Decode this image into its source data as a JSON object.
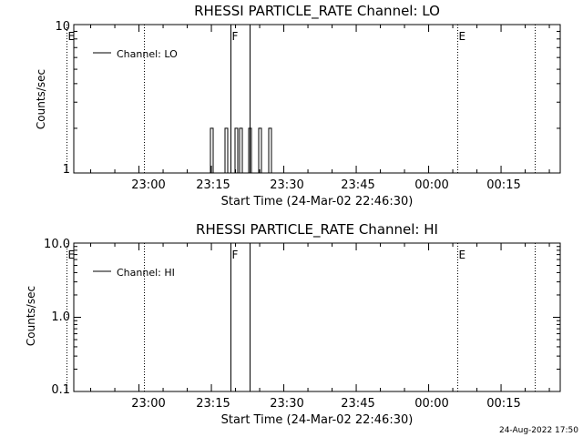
{
  "chart_data": [
    {
      "type": "line",
      "title": "RHESSI PARTICLE_RATE Channel: LO",
      "xlabel": "Start Time (24-Mar-02 22:46:30)",
      "ylabel": "Counts/sec",
      "yscale": "log",
      "ylim": [
        1,
        10
      ],
      "yticks": [
        "1",
        "10"
      ],
      "xlim_minutes": [
        0,
        100
      ],
      "xticks": [
        "23:00",
        "23:15",
        "23:30",
        "23:45",
        "00:00",
        "00:15"
      ],
      "legend": {
        "position": "top-left",
        "entries": [
          "Channel: LO"
        ]
      },
      "series": [
        {
          "name": "Channel: LO",
          "x": [
            "23:15",
            "23:16",
            "23:17",
            "23:18",
            "23:19",
            "23:20",
            "23:21",
            "23:22",
            "23:23",
            "23:24",
            "23:25",
            "23:26",
            "23:27"
          ],
          "y": [
            2,
            1,
            1,
            2,
            1,
            2,
            2,
            1,
            2,
            1,
            2,
            1,
            2
          ]
        }
      ],
      "markers": [
        {
          "label": "E",
          "style": "dotted",
          "time": "22:45"
        },
        {
          "label": "",
          "style": "dotted",
          "time": "23:01"
        },
        {
          "label": "F",
          "style": "solid",
          "time": "23:19"
        },
        {
          "label": "",
          "style": "solid",
          "time": "23:23"
        },
        {
          "label": "E",
          "style": "dotted",
          "time": "00:06"
        },
        {
          "label": "",
          "style": "dotted",
          "time": "00:22"
        }
      ]
    },
    {
      "type": "line",
      "title": "RHESSI PARTICLE_RATE Channel: HI",
      "xlabel": "Start Time (24-Mar-02 22:46:30)",
      "ylabel": "Counts/sec",
      "yscale": "log",
      "ylim": [
        0.1,
        10
      ],
      "yticks": [
        "0.1",
        "1.0",
        "10.0"
      ],
      "xlim_minutes": [
        0,
        100
      ],
      "xticks": [
        "23:00",
        "23:15",
        "23:30",
        "23:45",
        "00:00",
        "00:15"
      ],
      "legend": {
        "position": "top-left",
        "entries": [
          "Channel: HI"
        ]
      },
      "series": [
        {
          "name": "Channel: HI",
          "x": [],
          "y": []
        }
      ],
      "markers": [
        {
          "label": "E",
          "style": "dotted",
          "time": "22:45"
        },
        {
          "label": "",
          "style": "dotted",
          "time": "23:01"
        },
        {
          "label": "F",
          "style": "solid",
          "time": "23:19"
        },
        {
          "label": "",
          "style": "solid",
          "time": "23:23"
        },
        {
          "label": "E",
          "style": "dotted",
          "time": "00:06"
        },
        {
          "label": "",
          "style": "dotted",
          "time": "00:22"
        }
      ]
    }
  ],
  "footer": {
    "timestamp": "24-Aug-2022 17:50"
  }
}
